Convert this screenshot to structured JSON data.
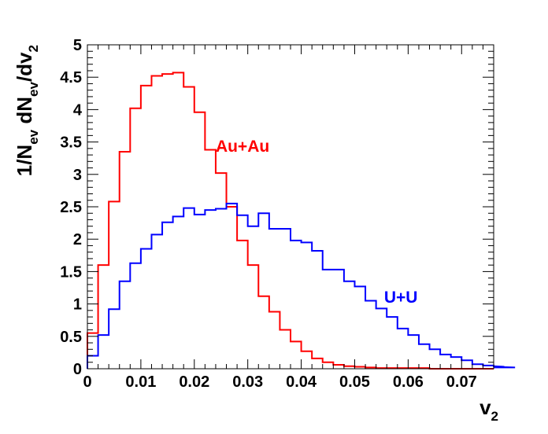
{
  "chart_data": {
    "type": "line",
    "style": "step-histogram",
    "title": "",
    "xlabel": {
      "main": "v",
      "sub": "2"
    },
    "ylabel": {
      "parts": [
        "1/N",
        "ev",
        " dN",
        "ev",
        "/dv",
        "2"
      ]
    },
    "xlim": [
      0,
      0.076
    ],
    "ylim": [
      0,
      5
    ],
    "x_ticks": [
      "0",
      "0.01",
      "0.02",
      "0.03",
      "0.04",
      "0.05",
      "0.06",
      "0.07"
    ],
    "y_ticks": [
      "0",
      "0.5",
      "1",
      "1.5",
      "2",
      "2.5",
      "3",
      "3.5",
      "4",
      "4.5",
      "5"
    ],
    "bin_width": 0.002,
    "series": [
      {
        "name": "Au+Au",
        "color": "#ff0000",
        "x_start": 0,
        "values": [
          0.55,
          1.6,
          2.58,
          3.35,
          4.02,
          4.37,
          4.52,
          4.55,
          4.57,
          4.35,
          3.96,
          3.38,
          3.02,
          2.5,
          1.98,
          1.6,
          1.12,
          0.88,
          0.6,
          0.42,
          0.27,
          0.16,
          0.1,
          0.06,
          0.04,
          0.03,
          0.02,
          0.01,
          0.01,
          0.01,
          0.01,
          0.01,
          0.0,
          0.0,
          0.0,
          0.0,
          0.0,
          0.0
        ]
      },
      {
        "name": "U+U",
        "color": "#0000ff",
        "x_start": 0,
        "values": [
          0.2,
          0.52,
          0.92,
          1.35,
          1.63,
          1.85,
          2.07,
          2.26,
          2.35,
          2.48,
          2.38,
          2.45,
          2.47,
          2.55,
          2.37,
          2.2,
          2.4,
          2.16,
          2.16,
          1.98,
          1.95,
          1.82,
          1.53,
          1.53,
          1.35,
          1.27,
          1.05,
          0.93,
          0.8,
          0.62,
          0.52,
          0.38,
          0.3,
          0.22,
          0.18,
          0.13,
          0.07,
          0.05,
          0.04,
          0.03,
          0.02
        ]
      }
    ],
    "annotations": [
      {
        "text": "Au+Au",
        "color": "#ff0000",
        "x": 0.024,
        "y": 3.35
      },
      {
        "text": "U+U",
        "color": "#0000ff",
        "x": 0.0555,
        "y": 1.02
      }
    ],
    "grid": false,
    "legend": "none"
  }
}
